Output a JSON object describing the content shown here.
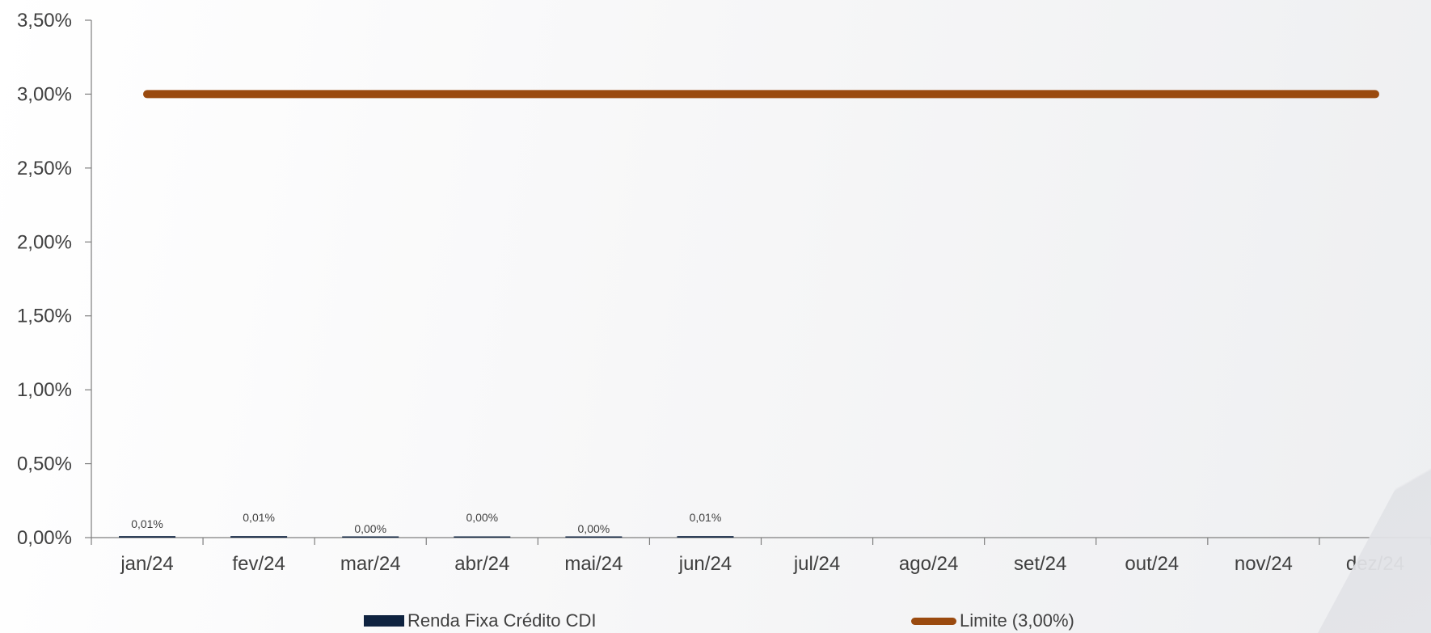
{
  "chart_data": {
    "type": "bar",
    "categories": [
      "jan/24",
      "fev/24",
      "mar/24",
      "abr/24",
      "mai/24",
      "jun/24",
      "jul/24",
      "ago/24",
      "set/24",
      "out/24",
      "nov/24",
      "dez/24"
    ],
    "series": [
      {
        "name": "Renda Fixa Crédito CDI",
        "type": "bar",
        "color": "#0f2340",
        "values": [
          0.01,
          0.01,
          0.0,
          0.0,
          0.0,
          0.01,
          null,
          null,
          null,
          null,
          null,
          null
        ],
        "data_labels": [
          "0,01%",
          "0,01%",
          "0,00%",
          "0,00%",
          "0,00%",
          "0,01%",
          "",
          "",
          "",
          "",
          "",
          ""
        ]
      },
      {
        "name": "Limite (3,00%)",
        "type": "line",
        "color": "#9a4a0f",
        "values": [
          3.0,
          3.0,
          3.0,
          3.0,
          3.0,
          3.0,
          3.0,
          3.0,
          3.0,
          3.0,
          3.0,
          3.0
        ]
      }
    ],
    "yticks": [
      "0,00%",
      "0,50%",
      "1,00%",
      "1,50%",
      "2,00%",
      "2,50%",
      "3,00%",
      "3,50%"
    ],
    "ylim": [
      0,
      3.5
    ],
    "title": "",
    "xlabel": "",
    "ylabel": "",
    "grid": false,
    "legend_position": "bottom"
  }
}
